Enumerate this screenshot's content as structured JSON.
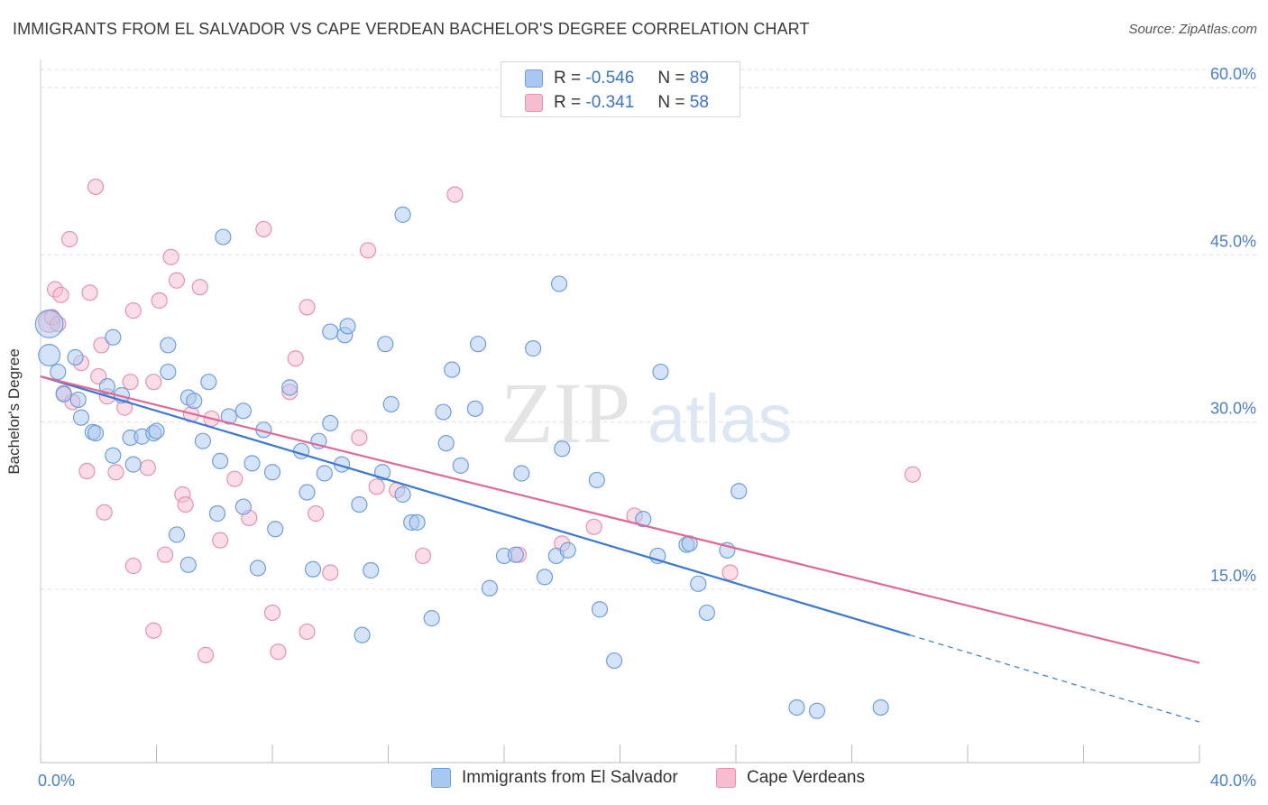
{
  "header": {
    "title": "IMMIGRANTS FROM EL SALVADOR VS CAPE VERDEAN BACHELOR'S DEGREE CORRELATION CHART",
    "source": "Source: ZipAtlas.com"
  },
  "watermark": {
    "zip": "ZIP",
    "atlas": "atlas"
  },
  "legend_top": {
    "rows": [
      {
        "r_label": "R =",
        "r_value": "-0.546",
        "n_label": "N =",
        "n_value": "89"
      },
      {
        "r_label": "R =",
        "r_value": "-0.341",
        "n_label": "N =",
        "n_value": "58"
      }
    ]
  },
  "colors": {
    "series1_fill": "#a9c8f0",
    "series1_stroke": "#6f9fdc",
    "series1_line": "#3b78d4",
    "series2_fill": "#f6bccf",
    "series2_stroke": "#e892b0",
    "series2_line": "#e06a94",
    "axis_text": "#4a7fcf",
    "grid": "#dddddd"
  },
  "chart_data": {
    "type": "scatter",
    "title": "IMMIGRANTS FROM EL SALVADOR VS CAPE VERDEAN BACHELOR'S DEGREE CORRELATION CHART",
    "xlabel": "",
    "ylabel": "Bachelor's Degree",
    "xlim": [
      0,
      40
    ],
    "ylim": [
      0,
      63
    ],
    "x_tick_labels": [
      "0.0%",
      "40.0%"
    ],
    "y_ticks": [
      15,
      30,
      45,
      60
    ],
    "y_tick_labels": [
      "15.0%",
      "30.0%",
      "45.0%",
      "60.0%"
    ],
    "grid": "horizontal dashed",
    "legend_position": "bottom",
    "series": [
      {
        "name": "Immigrants from El Salvador",
        "r": -0.546,
        "n": 89,
        "trend": {
          "x0": 0,
          "y0": 34.1,
          "x1": 30.0,
          "y1": 10.9,
          "dash_to_x": 40,
          "dash_to_y": 3.1
        },
        "points": [
          [
            0.3,
            38.8,
            1.8
          ],
          [
            0.3,
            36,
            1.4
          ],
          [
            0.6,
            34.5,
            1
          ],
          [
            0.8,
            32.5,
            1
          ],
          [
            1.3,
            32,
            1
          ],
          [
            1.2,
            35.8,
            1
          ],
          [
            1.4,
            30.4,
            1
          ],
          [
            1.8,
            29.1,
            1
          ],
          [
            1.9,
            29,
            1
          ],
          [
            2.3,
            33.2,
            1
          ],
          [
            2.8,
            32.4,
            1
          ],
          [
            2.5,
            37.6,
            1
          ],
          [
            2.5,
            27,
            1
          ],
          [
            3.2,
            26.2,
            1
          ],
          [
            3.1,
            28.6,
            1
          ],
          [
            3.5,
            28.7,
            1
          ],
          [
            3.9,
            29,
            1
          ],
          [
            4.0,
            29.2,
            1
          ],
          [
            4.4,
            34.5,
            1
          ],
          [
            4.4,
            36.9,
            1
          ],
          [
            5.1,
            32.2,
            1
          ],
          [
            5.3,
            31.9,
            1
          ],
          [
            4.7,
            19.9,
            1
          ],
          [
            5.1,
            17.2,
            1
          ],
          [
            5.6,
            28.3,
            1
          ],
          [
            5.8,
            33.6,
            1
          ],
          [
            6.1,
            21.8,
            1
          ],
          [
            6.2,
            26.5,
            1
          ],
          [
            6.5,
            30.5,
            1
          ],
          [
            6.3,
            46.6,
            1
          ],
          [
            7.0,
            31,
            1
          ],
          [
            7.0,
            22.4,
            1
          ],
          [
            7.3,
            26.3,
            1
          ],
          [
            7.5,
            16.9,
            1
          ],
          [
            7.7,
            29.3,
            1
          ],
          [
            8.0,
            25.5,
            1
          ],
          [
            8.1,
            20.4,
            1
          ],
          [
            8.6,
            33.1,
            1
          ],
          [
            9.0,
            27.4,
            1
          ],
          [
            9.2,
            23.7,
            1
          ],
          [
            9.4,
            16.8,
            1
          ],
          [
            9.6,
            28.3,
            1
          ],
          [
            9.8,
            25.4,
            1
          ],
          [
            10.0,
            29.9,
            1
          ],
          [
            10.4,
            26.2,
            1
          ],
          [
            10.0,
            38.1,
            1
          ],
          [
            10.5,
            37.8,
            1
          ],
          [
            10.6,
            38.6,
            1
          ],
          [
            11.0,
            22.6,
            1
          ],
          [
            11.1,
            10.9,
            1
          ],
          [
            11.4,
            16.7,
            1
          ],
          [
            11.8,
            25.5,
            1
          ],
          [
            11.9,
            37.0,
            1
          ],
          [
            12.1,
            31.6,
            1
          ],
          [
            12.5,
            23.5,
            1
          ],
          [
            12.8,
            21.0,
            1
          ],
          [
            12.5,
            48.6,
            1
          ],
          [
            13.0,
            21.0,
            1
          ],
          [
            13.5,
            12.4,
            1
          ],
          [
            13.9,
            30.9,
            1
          ],
          [
            14.0,
            28.1,
            1
          ],
          [
            14.2,
            34.7,
            1
          ],
          [
            14.5,
            26.1,
            1
          ],
          [
            15.0,
            31.2,
            1
          ],
          [
            15.1,
            37.0,
            1
          ],
          [
            15.5,
            15.1,
            1
          ],
          [
            16.0,
            18.0,
            1
          ],
          [
            16.4,
            18.1,
            1
          ],
          [
            16.6,
            25.4,
            1
          ],
          [
            17.0,
            36.6,
            1
          ],
          [
            17.4,
            16.1,
            1
          ],
          [
            17.8,
            18.0,
            1
          ],
          [
            18.2,
            18.5,
            1
          ],
          [
            17.9,
            42.4,
            1
          ],
          [
            18.0,
            27.6,
            1
          ],
          [
            19.2,
            24.8,
            1
          ],
          [
            19.3,
            13.2,
            1
          ],
          [
            19.8,
            8.6,
            1
          ],
          [
            20.8,
            21.3,
            1
          ],
          [
            21.3,
            18.0,
            1
          ],
          [
            21.4,
            34.5,
            1
          ],
          [
            22.3,
            19.0,
            1
          ],
          [
            22.7,
            15.5,
            1
          ],
          [
            23.0,
            12.9,
            1
          ],
          [
            22.4,
            19.1,
            1
          ],
          [
            23.7,
            18.5,
            1
          ],
          [
            24.1,
            23.8,
            1
          ],
          [
            26.1,
            4.4,
            1
          ],
          [
            26.8,
            4.1,
            1
          ],
          [
            29.0,
            4.4,
            1
          ]
        ]
      },
      {
        "name": "Cape Verdeans",
        "r": -0.341,
        "n": 58,
        "trend": {
          "x0": 0,
          "y0": 34.1,
          "x1": 40.0,
          "y1": 8.4
        },
        "points": [
          [
            0.3,
            39.0,
            1.4
          ],
          [
            0.5,
            41.9,
            1
          ],
          [
            0.7,
            41.4,
            1
          ],
          [
            0.8,
            32.6,
            1
          ],
          [
            1.0,
            46.4,
            1
          ],
          [
            1.1,
            31.8,
            1
          ],
          [
            1.4,
            35.3,
            1
          ],
          [
            1.6,
            25.6,
            1
          ],
          [
            1.7,
            41.6,
            1
          ],
          [
            1.9,
            51.1,
            1
          ],
          [
            2.0,
            34.1,
            1
          ],
          [
            2.1,
            36.9,
            1
          ],
          [
            2.2,
            21.9,
            1
          ],
          [
            2.3,
            32.3,
            1
          ],
          [
            2.6,
            25.5,
            1
          ],
          [
            2.9,
            31.3,
            1
          ],
          [
            3.1,
            33.6,
            1
          ],
          [
            3.2,
            17.1,
            1
          ],
          [
            3.2,
            40.0,
            1
          ],
          [
            3.7,
            25.9,
            1
          ],
          [
            3.9,
            11.3,
            1
          ],
          [
            3.9,
            33.6,
            1
          ],
          [
            4.1,
            40.9,
            1
          ],
          [
            4.3,
            18.1,
            1
          ],
          [
            4.5,
            44.8,
            1
          ],
          [
            4.7,
            42.7,
            1
          ],
          [
            4.9,
            23.5,
            1
          ],
          [
            5.0,
            22.6,
            1
          ],
          [
            5.2,
            30.7,
            1
          ],
          [
            5.5,
            42.1,
            1
          ],
          [
            5.7,
            9.1,
            1
          ],
          [
            5.9,
            30.3,
            1
          ],
          [
            6.2,
            19.4,
            1
          ],
          [
            6.7,
            24.9,
            1
          ],
          [
            7.2,
            21.4,
            1
          ],
          [
            7.7,
            47.3,
            1
          ],
          [
            8.0,
            12.9,
            1
          ],
          [
            8.2,
            9.4,
            1
          ],
          [
            8.6,
            32.7,
            1
          ],
          [
            8.8,
            35.7,
            1
          ],
          [
            9.2,
            11.2,
            1
          ],
          [
            9.2,
            40.3,
            1
          ],
          [
            9.5,
            21.8,
            1
          ],
          [
            10.0,
            16.5,
            1
          ],
          [
            11.0,
            28.6,
            1
          ],
          [
            11.3,
            45.4,
            1
          ],
          [
            11.6,
            24.2,
            1
          ],
          [
            12.3,
            23.9,
            1
          ],
          [
            13.2,
            18.0,
            1
          ],
          [
            14.3,
            50.4,
            1
          ],
          [
            16.5,
            18.1,
            1
          ],
          [
            18.0,
            19.1,
            1
          ],
          [
            19.1,
            20.6,
            1
          ],
          [
            20.5,
            21.6,
            1
          ],
          [
            23.8,
            16.5,
            1
          ],
          [
            30.1,
            25.3,
            1
          ],
          [
            0.4,
            39.4,
            1
          ],
          [
            0.6,
            38.8,
            1
          ]
        ]
      }
    ]
  },
  "bottom_legend": {
    "items": [
      {
        "label": "Immigrants from El Salvador"
      },
      {
        "label": "Cape Verdeans"
      }
    ]
  }
}
